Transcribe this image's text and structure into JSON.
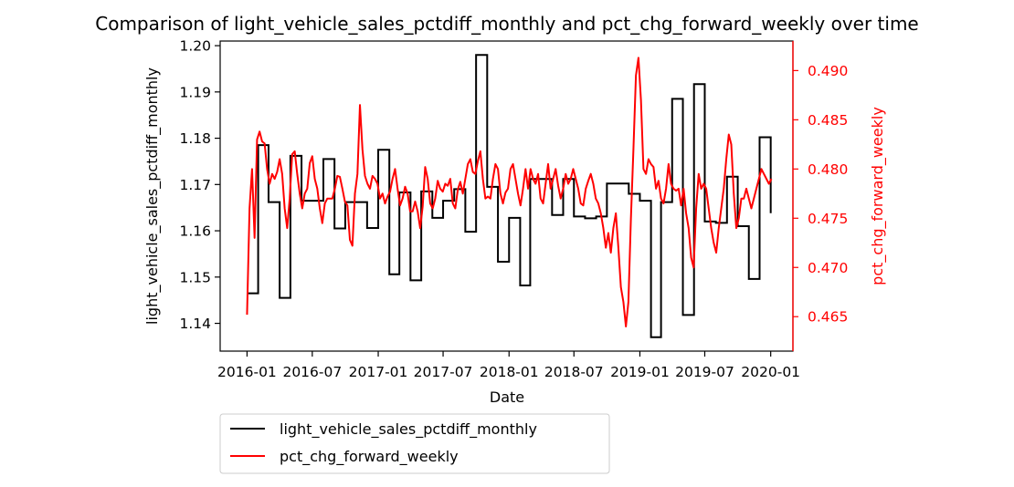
{
  "chart_data": {
    "type": "line",
    "title": "Comparison of light_vehicle_sales_pctdiff_monthly and pct_chg_forward_weekly over time",
    "xlabel": "Date",
    "ylabel_left": "light_vehicle_sales_pctdiff_monthly",
    "ylabel_right": "pct_chg_forward_weekly",
    "x_ticks": [
      "2016-01",
      "2016-07",
      "2017-01",
      "2017-07",
      "2018-01",
      "2018-07",
      "2019-01",
      "2019-07",
      "2020-01"
    ],
    "xlim": [
      "2015-10-18",
      "2020-03-03"
    ],
    "ylim_left": [
      1.134,
      1.201
    ],
    "ylim_right": [
      0.4615,
      0.493
    ],
    "y_ticks_left": [
      1.14,
      1.15,
      1.16,
      1.17,
      1.18,
      1.19,
      1.2
    ],
    "y_ticks_right": [
      0.465,
      0.47,
      0.475,
      0.48,
      0.485,
      0.49
    ],
    "legend_position": "below-left",
    "colors": {
      "left_series": "#000000",
      "right_series": "#ff0000"
    },
    "series": [
      {
        "name": "light_vehicle_sales_pctdiff_monthly",
        "axis": "left",
        "style": "step",
        "x": [
          "2016-01-01",
          "2016-02-01",
          "2016-03-01",
          "2016-04-01",
          "2016-05-01",
          "2016-06-01",
          "2016-07-01",
          "2016-08-01",
          "2016-09-01",
          "2016-10-01",
          "2016-11-01",
          "2016-12-01",
          "2017-01-01",
          "2017-02-01",
          "2017-03-01",
          "2017-04-01",
          "2017-05-01",
          "2017-06-01",
          "2017-07-01",
          "2017-08-01",
          "2017-09-01",
          "2017-10-01",
          "2017-11-01",
          "2017-12-01",
          "2018-01-01",
          "2018-02-01",
          "2018-03-01",
          "2018-04-01",
          "2018-05-01",
          "2018-06-01",
          "2018-07-01",
          "2018-08-01",
          "2018-09-01",
          "2018-10-01",
          "2018-11-01",
          "2018-12-01",
          "2019-01-01",
          "2019-02-01",
          "2019-03-01",
          "2019-04-01",
          "2019-05-01",
          "2019-06-01",
          "2019-07-01",
          "2019-08-01",
          "2019-09-01",
          "2019-10-01",
          "2019-11-01",
          "2019-12-01",
          "2020-01-01"
        ],
        "values": [
          1.1465,
          1.1785,
          1.1662,
          1.1455,
          1.1762,
          1.1665,
          1.1665,
          1.1755,
          1.1605,
          1.1662,
          1.1662,
          1.1606,
          1.1775,
          1.1506,
          1.1683,
          1.1493,
          1.1685,
          1.1628,
          1.1665,
          1.169,
          1.1598,
          1.198,
          1.1695,
          1.1533,
          1.1628,
          1.1482,
          1.1712,
          1.1712,
          1.1634,
          1.1712,
          1.1631,
          1.1627,
          1.1631,
          1.1702,
          1.1702,
          1.168,
          1.1665,
          1.137,
          1.1662,
          1.1885,
          1.1418,
          1.1917,
          1.162,
          1.1617,
          1.1717,
          1.161,
          1.1496,
          1.1802,
          1.1638
        ]
      },
      {
        "name": "pct_chg_forward_weekly",
        "axis": "right",
        "style": "line",
        "x": [
          "2016-01-01",
          "2016-01-08",
          "2016-01-15",
          "2016-01-22",
          "2016-01-29",
          "2016-02-05",
          "2016-02-12",
          "2016-02-19",
          "2016-02-26",
          "2016-03-04",
          "2016-03-11",
          "2016-03-18",
          "2016-03-25",
          "2016-04-01",
          "2016-04-08",
          "2016-04-15",
          "2016-04-22",
          "2016-04-29",
          "2016-05-06",
          "2016-05-13",
          "2016-05-20",
          "2016-05-27",
          "2016-06-03",
          "2016-06-10",
          "2016-06-17",
          "2016-06-24",
          "2016-07-01",
          "2016-07-08",
          "2016-07-15",
          "2016-07-22",
          "2016-07-29",
          "2016-08-05",
          "2016-08-12",
          "2016-08-19",
          "2016-08-26",
          "2016-09-02",
          "2016-09-09",
          "2016-09-16",
          "2016-09-23",
          "2016-09-30",
          "2016-10-07",
          "2016-10-14",
          "2016-10-21",
          "2016-10-28",
          "2016-11-04",
          "2016-11-11",
          "2016-11-18",
          "2016-11-25",
          "2016-12-02",
          "2016-12-09",
          "2016-12-16",
          "2016-12-23",
          "2016-12-30",
          "2017-01-06",
          "2017-01-13",
          "2017-01-20",
          "2017-01-27",
          "2017-02-03",
          "2017-02-10",
          "2017-02-17",
          "2017-02-24",
          "2017-03-03",
          "2017-03-10",
          "2017-03-17",
          "2017-03-24",
          "2017-03-31",
          "2017-04-07",
          "2017-04-14",
          "2017-04-21",
          "2017-04-28",
          "2017-05-05",
          "2017-05-12",
          "2017-05-19",
          "2017-05-26",
          "2017-06-02",
          "2017-06-09",
          "2017-06-16",
          "2017-06-23",
          "2017-06-30",
          "2017-07-07",
          "2017-07-14",
          "2017-07-21",
          "2017-07-28",
          "2017-08-04",
          "2017-08-11",
          "2017-08-18",
          "2017-08-25",
          "2017-09-01",
          "2017-09-08",
          "2017-09-15",
          "2017-09-22",
          "2017-09-29",
          "2017-10-06",
          "2017-10-13",
          "2017-10-20",
          "2017-10-27",
          "2017-11-03",
          "2017-11-10",
          "2017-11-17",
          "2017-11-24",
          "2017-12-01",
          "2017-12-08",
          "2017-12-15",
          "2017-12-22",
          "2017-12-29",
          "2018-01-05",
          "2018-01-12",
          "2018-01-19",
          "2018-01-26",
          "2018-02-02",
          "2018-02-09",
          "2018-02-16",
          "2018-02-23",
          "2018-03-02",
          "2018-03-09",
          "2018-03-16",
          "2018-03-23",
          "2018-03-30",
          "2018-04-06",
          "2018-04-13",
          "2018-04-20",
          "2018-04-27",
          "2018-05-04",
          "2018-05-11",
          "2018-05-18",
          "2018-05-25",
          "2018-06-01",
          "2018-06-08",
          "2018-06-15",
          "2018-06-22",
          "2018-06-29",
          "2018-07-06",
          "2018-07-13",
          "2018-07-20",
          "2018-07-27",
          "2018-08-03",
          "2018-08-10",
          "2018-08-17",
          "2018-08-24",
          "2018-08-31",
          "2018-09-07",
          "2018-09-14",
          "2018-09-21",
          "2018-09-28",
          "2018-10-05",
          "2018-10-12",
          "2018-10-19",
          "2018-10-26",
          "2018-11-02",
          "2018-11-09",
          "2018-11-16",
          "2018-11-23",
          "2018-11-30",
          "2018-12-07",
          "2018-12-14",
          "2018-12-21",
          "2018-12-28",
          "2019-01-04",
          "2019-01-11",
          "2019-01-18",
          "2019-01-25",
          "2019-02-01",
          "2019-02-08",
          "2019-02-15",
          "2019-02-22",
          "2019-03-01",
          "2019-03-08",
          "2019-03-15",
          "2019-03-22",
          "2019-03-29",
          "2019-04-05",
          "2019-04-12",
          "2019-04-19",
          "2019-04-26",
          "2019-05-03",
          "2019-05-10",
          "2019-05-17",
          "2019-05-24",
          "2019-05-31",
          "2019-06-07",
          "2019-06-14",
          "2019-06-21",
          "2019-06-28",
          "2019-07-05",
          "2019-07-12",
          "2019-07-19",
          "2019-07-26",
          "2019-08-02",
          "2019-08-09",
          "2019-08-16",
          "2019-08-23",
          "2019-08-30",
          "2019-09-06",
          "2019-09-13",
          "2019-09-20",
          "2019-09-27",
          "2019-10-04",
          "2019-10-11",
          "2019-10-18",
          "2019-10-25",
          "2019-11-01",
          "2019-11-08",
          "2019-11-15",
          "2019-11-22",
          "2019-11-29",
          "2019-12-06",
          "2019-12-13",
          "2019-12-20",
          "2019-12-27",
          "2020-01-03"
        ],
        "values": [
          0.4652,
          0.476,
          0.48,
          0.473,
          0.483,
          0.4838,
          0.4828,
          0.4826,
          0.48,
          0.4785,
          0.4795,
          0.479,
          0.4797,
          0.481,
          0.4795,
          0.476,
          0.474,
          0.477,
          0.4815,
          0.4818,
          0.4795,
          0.4775,
          0.476,
          0.4775,
          0.478,
          0.4806,
          0.4813,
          0.479,
          0.478,
          0.476,
          0.4745,
          0.4765,
          0.477,
          0.477,
          0.477,
          0.478,
          0.4793,
          0.4792,
          0.478,
          0.4767,
          0.4763,
          0.4728,
          0.4722,
          0.4775,
          0.4795,
          0.4865,
          0.482,
          0.4793,
          0.4785,
          0.478,
          0.4793,
          0.479,
          0.4785,
          0.477,
          0.4775,
          0.4765,
          0.4772,
          0.4777,
          0.479,
          0.48,
          0.478,
          0.4763,
          0.477,
          0.4782,
          0.4775,
          0.4757,
          0.4757,
          0.4767,
          0.4757,
          0.474,
          0.4762,
          0.4802,
          0.479,
          0.4765,
          0.476,
          0.477,
          0.4788,
          0.478,
          0.4777,
          0.4785,
          0.4783,
          0.479,
          0.4765,
          0.476,
          0.4779,
          0.4787,
          0.4775,
          0.479,
          0.4805,
          0.481,
          0.4797,
          0.4795,
          0.4808,
          0.4818,
          0.479,
          0.477,
          0.4772,
          0.477,
          0.479,
          0.4805,
          0.48,
          0.4775,
          0.4765,
          0.4776,
          0.478,
          0.48,
          0.4805,
          0.479,
          0.4775,
          0.4763,
          0.478,
          0.48,
          0.478,
          0.48,
          0.479,
          0.4785,
          0.4795,
          0.477,
          0.4765,
          0.4785,
          0.4805,
          0.478,
          0.479,
          0.48,
          0.4783,
          0.477,
          0.478,
          0.4795,
          0.4785,
          0.479,
          0.48,
          0.479,
          0.478,
          0.4765,
          0.4763,
          0.478,
          0.4788,
          0.4795,
          0.4785,
          0.477,
          0.4765,
          0.4755,
          0.474,
          0.472,
          0.4735,
          0.4715,
          0.474,
          0.4755,
          0.472,
          0.468,
          0.4665,
          0.464,
          0.4665,
          0.475,
          0.482,
          0.4895,
          0.4913,
          0.487,
          0.48,
          0.4795,
          0.481,
          0.4805,
          0.4802,
          0.478,
          0.4788,
          0.477,
          0.4765,
          0.478,
          0.4805,
          0.4785,
          0.478,
          0.4778,
          0.478,
          0.4763,
          0.478,
          0.4755,
          0.474,
          0.471,
          0.47,
          0.476,
          0.4795,
          0.478,
          0.4785,
          0.478,
          0.476,
          0.474,
          0.4725,
          0.4715,
          0.474,
          0.476,
          0.478,
          0.481,
          0.4835,
          0.4825,
          0.4775,
          0.474,
          0.475,
          0.477,
          0.477,
          0.478,
          0.477,
          0.476,
          0.477,
          0.478,
          0.479,
          0.48,
          0.4795,
          0.479,
          0.4785,
          0.479
        ]
      }
    ]
  }
}
